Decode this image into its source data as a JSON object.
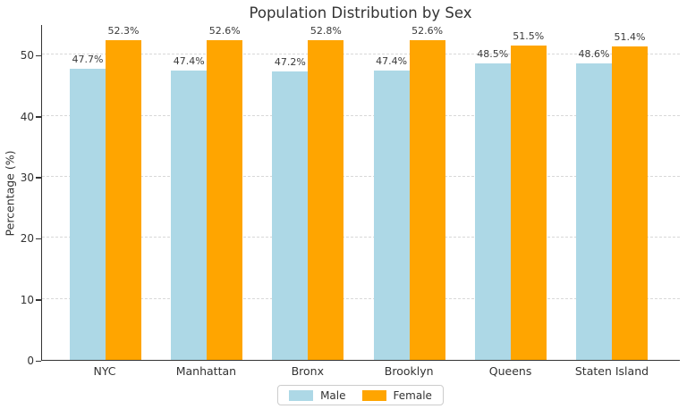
{
  "chart_data": {
    "type": "bar",
    "title": "Population Distribution by Sex",
    "categories": [
      "NYC",
      "Manhattan",
      "Bronx",
      "Brooklyn",
      "Queens",
      "Staten Island"
    ],
    "series": [
      {
        "name": "Male",
        "color": "#ADD8E6",
        "values": [
          47.7,
          47.4,
          47.2,
          47.4,
          48.5,
          48.6
        ]
      },
      {
        "name": "Female",
        "color": "#FFA500",
        "values": [
          52.3,
          52.6,
          52.8,
          52.6,
          51.5,
          51.4
        ]
      }
    ],
    "value_labels": [
      [
        "47.7%",
        "47.4%",
        "47.2%",
        "47.4%",
        "48.5%",
        "48.6%"
      ],
      [
        "52.3%",
        "52.6%",
        "52.8%",
        "52.6%",
        "51.5%",
        "51.4%"
      ]
    ],
    "xlabel": "",
    "ylabel": "Percentage (%)",
    "yticks": [
      0,
      10,
      20,
      30,
      40,
      50
    ],
    "ylim": [
      0,
      55
    ],
    "grid": "horizontal dashed",
    "legend_position": "bottom center",
    "legend_entries": [
      "Male",
      "Female"
    ],
    "colors": {
      "male_bar": "#ADD8E6",
      "female_bar": "#FFA500",
      "text": "#333333",
      "gridline": "#d8d8d8",
      "spine": "#343434",
      "background": "#ffffff"
    }
  }
}
